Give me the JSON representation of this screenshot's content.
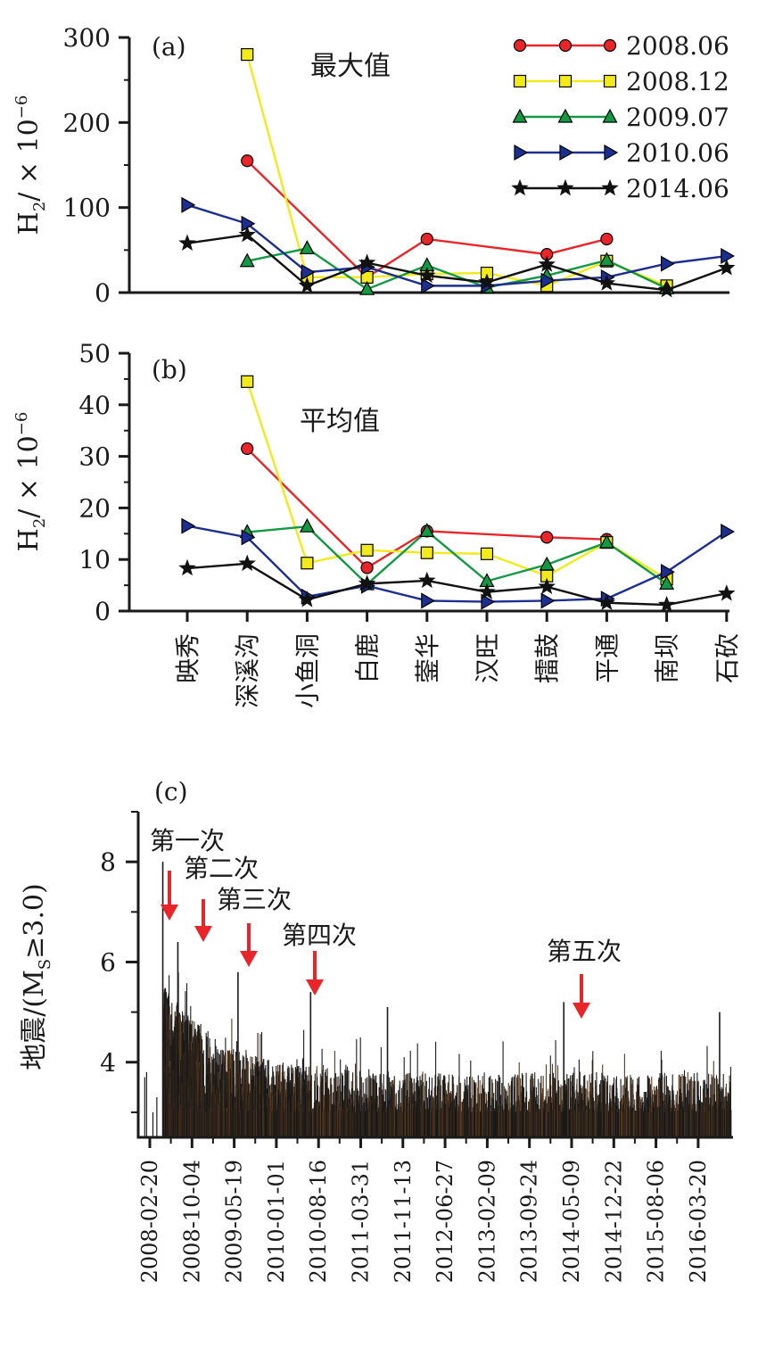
{
  "chart_data": [
    {
      "type": "line",
      "panel_label": "(a)",
      "title": "最大值",
      "ylabel": "H",
      "ylabel_sub": "2",
      "ylabel_unit": "/ × 10",
      "ylabel_exp": "−6",
      "ylim": [
        0,
        300
      ],
      "yticks": [
        "0",
        "100",
        "200",
        "300"
      ],
      "legend_position": "top-right",
      "series": [
        {
          "name": "2008.06",
          "color": "#e8262a",
          "marker": "circle",
          "values": [
            null,
            155,
            null,
            18,
            63,
            null,
            45,
            63,
            null,
            null
          ]
        },
        {
          "name": "2008.12",
          "color": "#f2ea1a",
          "marker": "square",
          "values": [
            null,
            280,
            18,
            18,
            22,
            23,
            8,
            37,
            8,
            null
          ]
        },
        {
          "name": "2009.07",
          "color": "#129944",
          "marker": "triangle",
          "values": [
            null,
            37,
            52,
            4,
            32,
            6,
            20,
            38,
            5,
            null
          ]
        },
        {
          "name": "2010.06",
          "color": "#1c2f90",
          "marker": "triangle-right",
          "values": [
            103,
            81,
            24,
            30,
            8,
            8,
            14,
            18,
            34,
            43
          ]
        },
        {
          "name": "2014.06",
          "color": "#111111",
          "marker": "star",
          "values": [
            58,
            68,
            8,
            35,
            20,
            12,
            33,
            11,
            3,
            29
          ]
        }
      ]
    },
    {
      "type": "line",
      "panel_label": "(b)",
      "title": "平均值",
      "ylabel": "H",
      "ylabel_sub": "2",
      "ylabel_unit": "/ × 10",
      "ylabel_exp": "−6",
      "ylim": [
        0,
        50
      ],
      "yticks": [
        "0",
        "10",
        "20",
        "30",
        "40",
        "50"
      ],
      "categories": [
        "映秀",
        "深溪沟",
        "小鱼洞",
        "白鹿",
        "蓥华",
        "汉旺",
        "擂鼓",
        "平通",
        "南坝",
        "石砍"
      ],
      "series": [
        {
          "color": "#e8262a",
          "marker": "circle",
          "values": [
            null,
            31.5,
            null,
            8.4,
            15.5,
            null,
            14.3,
            13.9,
            null,
            null
          ]
        },
        {
          "color": "#f2ea1a",
          "marker": "square",
          "values": [
            null,
            44.5,
            9.3,
            11.8,
            11.3,
            11.1,
            6.8,
            13.3,
            6.2,
            null
          ]
        },
        {
          "color": "#129944",
          "marker": "triangle",
          "values": [
            null,
            15.3,
            16.4,
            5.2,
            15.5,
            5.8,
            9.0,
            13.3,
            5.3,
            null
          ]
        },
        {
          "color": "#1c2f90",
          "marker": "triangle-right",
          "values": [
            16.5,
            14.3,
            2.8,
            4.9,
            2.0,
            1.8,
            2.0,
            2.4,
            7.6,
            15.4
          ]
        },
        {
          "color": "#111111",
          "marker": "star",
          "values": [
            8.3,
            9.2,
            2.2,
            5.3,
            5.9,
            3.7,
            4.7,
            1.6,
            1.2,
            3.4
          ]
        }
      ]
    },
    {
      "type": "bar",
      "panel_label": "(c)",
      "ylabel": "地震/(M",
      "ylabel_sub": "S",
      "ylabel_tail": "≥3.0)",
      "ylim": [
        2.5,
        9.0
      ],
      "yticks": [
        "4",
        "6",
        "8"
      ],
      "date_ticks": [
        "2008-02-20",
        "2008-10-04",
        "2009-05-19",
        "2010-01-01",
        "2010-08-16",
        "2011-03-31",
        "2011-11-13",
        "2012-06-27",
        "2013-02-09",
        "2013-09-24",
        "2014-05-09",
        "2014-12-22",
        "2015-08-06",
        "2016-03-20"
      ],
      "x_range": [
        "2008-01-01",
        "2016-09-30"
      ],
      "bar_color": "#1a1a1a",
      "events": [
        {
          "label": "第一次",
          "date": "2008-06-01"
        },
        {
          "label": "第二次",
          "date": "2008-12-01"
        },
        {
          "label": "第三次",
          "date": "2009-07-15"
        },
        {
          "label": "第四次",
          "date": "2010-06-01"
        },
        {
          "label": "第五次",
          "date": "2014-06-01"
        }
      ],
      "arrow_color": "#e8262a",
      "notable_quakes": [
        {
          "date": "2008-05-12",
          "magnitude": 8.0
        },
        {
          "date": "2008-08-01",
          "magnitude": 6.4
        },
        {
          "date": "2009-06-20",
          "magnitude": 5.8
        },
        {
          "date": "2010-07-15",
          "magnitude": 5.4
        },
        {
          "date": "2011-09-01",
          "magnitude": 5.1
        },
        {
          "date": "2014-04-05",
          "magnitude": 5.2
        },
        {
          "date": "2016-07-20",
          "magnitude": 5.0
        }
      ]
    }
  ]
}
